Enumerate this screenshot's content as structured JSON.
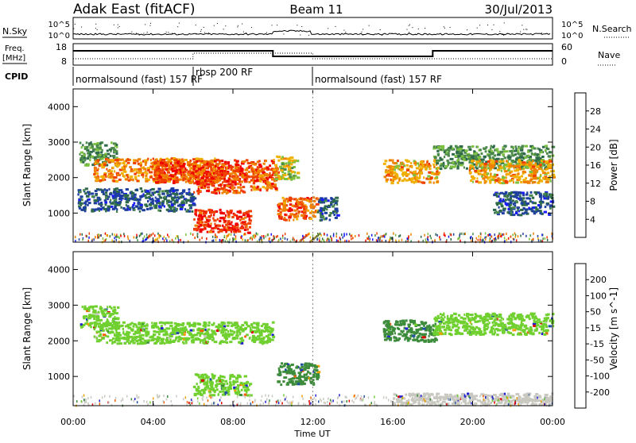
{
  "header": {
    "station": "Adak East (fitACF)",
    "beam": "Beam 11",
    "date": "30/Jul/2013"
  },
  "top_panels": {
    "nsky_label": "N.Sky",
    "nsky_ticks": [
      "10^5",
      "10^0"
    ],
    "nsearch_label": "N.Search",
    "freq_label_1": "Freq.",
    "freq_label_2": "[MHz]",
    "freq_ticks": [
      "18",
      "8"
    ],
    "nave_label": "Nave",
    "nave_ticks": [
      "60",
      "0"
    ],
    "cpid_label": "CPID",
    "cpid_segments": [
      {
        "label": "normalsound (fast) 157 RF",
        "start": 0,
        "end": 6
      },
      {
        "label": "rbsp 200 RF",
        "start": 6,
        "end": 12
      },
      {
        "label": "normalsound (fast) 157 RF",
        "start": 12,
        "end": 24
      }
    ]
  },
  "x_axis": {
    "label": "Time UT",
    "ticks": [
      "00:00",
      "04:00",
      "08:00",
      "12:00",
      "16:00",
      "20:00",
      "00:00"
    ]
  },
  "colors": {
    "power": [
      "#1a1aff",
      "#1f3f9f",
      "#2e6a4a",
      "#4c8a4c",
      "#7cc040",
      "#f0b000",
      "#f08000",
      "#f04000",
      "#f00000"
    ],
    "velocity": [
      "#e00000",
      "#f06000",
      "#f0a000",
      "#c8c8c0",
      "#70d030",
      "#3c8c3c",
      "#2050a0",
      "#2020d0"
    ]
  },
  "chart_data": [
    {
      "type": "heatmap",
      "title": "Power",
      "ylabel": "Slant Range [km]",
      "xlabel": "",
      "x_range_hours": [
        0,
        24
      ],
      "ylim": [
        180,
        4500
      ],
      "y_ticks": [
        "1000",
        "2000",
        "3000",
        "4000"
      ],
      "colorbar": {
        "label": "Power [dB]",
        "ticks": [
          "4",
          "8",
          "12",
          "16",
          "20",
          "24",
          "28"
        ],
        "range": [
          0,
          32
        ]
      },
      "echo_bands": [
        {
          "t_start": 0.3,
          "t_end": 2.2,
          "range_km": 2700,
          "level_db": 12
        },
        {
          "t_start": 1.0,
          "t_end": 7.2,
          "range_km": 2250,
          "level_db": 24
        },
        {
          "t_start": 4.0,
          "t_end": 10.0,
          "range_km": 2200,
          "level_db": 28
        },
        {
          "t_start": 6.0,
          "t_end": 8.6,
          "range_km": 1900,
          "level_db": 28
        },
        {
          "t_start": 6.0,
          "t_end": 8.8,
          "range_km": 800,
          "level_db": 30
        },
        {
          "t_start": 8.8,
          "t_end": 10.2,
          "range_km": 2000,
          "level_db": 26
        },
        {
          "t_start": 10.0,
          "t_end": 11.2,
          "range_km": 2300,
          "level_db": 18
        },
        {
          "t_start": 10.2,
          "t_end": 12.2,
          "range_km": 1150,
          "level_db": 26
        },
        {
          "t_start": 12.2,
          "t_end": 13.2,
          "range_km": 1150,
          "level_db": 6
        },
        {
          "t_start": 15.5,
          "t_end": 18.2,
          "range_km": 2200,
          "level_db": 22
        },
        {
          "t_start": 18.0,
          "t_end": 24.0,
          "range_km": 2600,
          "level_db": 12
        },
        {
          "t_start": 19.8,
          "t_end": 24.0,
          "range_km": 2200,
          "level_db": 22
        },
        {
          "t_start": 21.0,
          "t_end": 24.0,
          "range_km": 1300,
          "level_db": 6
        },
        {
          "t_start": 0.2,
          "t_end": 6.0,
          "range_km": 1400,
          "level_db": 6
        }
      ]
    },
    {
      "type": "heatmap",
      "title": "Velocity",
      "ylabel": "Slant Range [km]",
      "xlabel": "Time UT",
      "x_range_hours": [
        0,
        24
      ],
      "ylim": [
        180,
        4500
      ],
      "y_ticks": [
        "1000",
        "2000",
        "3000",
        "4000"
      ],
      "colorbar": {
        "label": "Velocity [m s^-1]",
        "ticks": [
          "-200",
          "-100",
          "-50",
          "-15",
          "15",
          "50",
          "100",
          "200"
        ]
      },
      "echo_bands": [
        {
          "t_start": 0.3,
          "t_end": 2.2,
          "range_km": 2700,
          "velocity": 0
        },
        {
          "t_start": 1.0,
          "t_end": 10.0,
          "range_km": 2250,
          "velocity": 0
        },
        {
          "t_start": 6.0,
          "t_end": 8.8,
          "range_km": 800,
          "velocity": 0
        },
        {
          "t_start": 10.2,
          "t_end": 12.2,
          "range_km": 1100,
          "velocity": 40
        },
        {
          "t_start": 15.5,
          "t_end": 18.2,
          "range_km": 2300,
          "velocity": 30
        },
        {
          "t_start": 18.0,
          "t_end": 24.0,
          "range_km": 2500,
          "velocity": 0
        },
        {
          "t_start": 16.0,
          "t_end": 24.0,
          "range_km": 250,
          "velocity": -40
        }
      ]
    }
  ]
}
